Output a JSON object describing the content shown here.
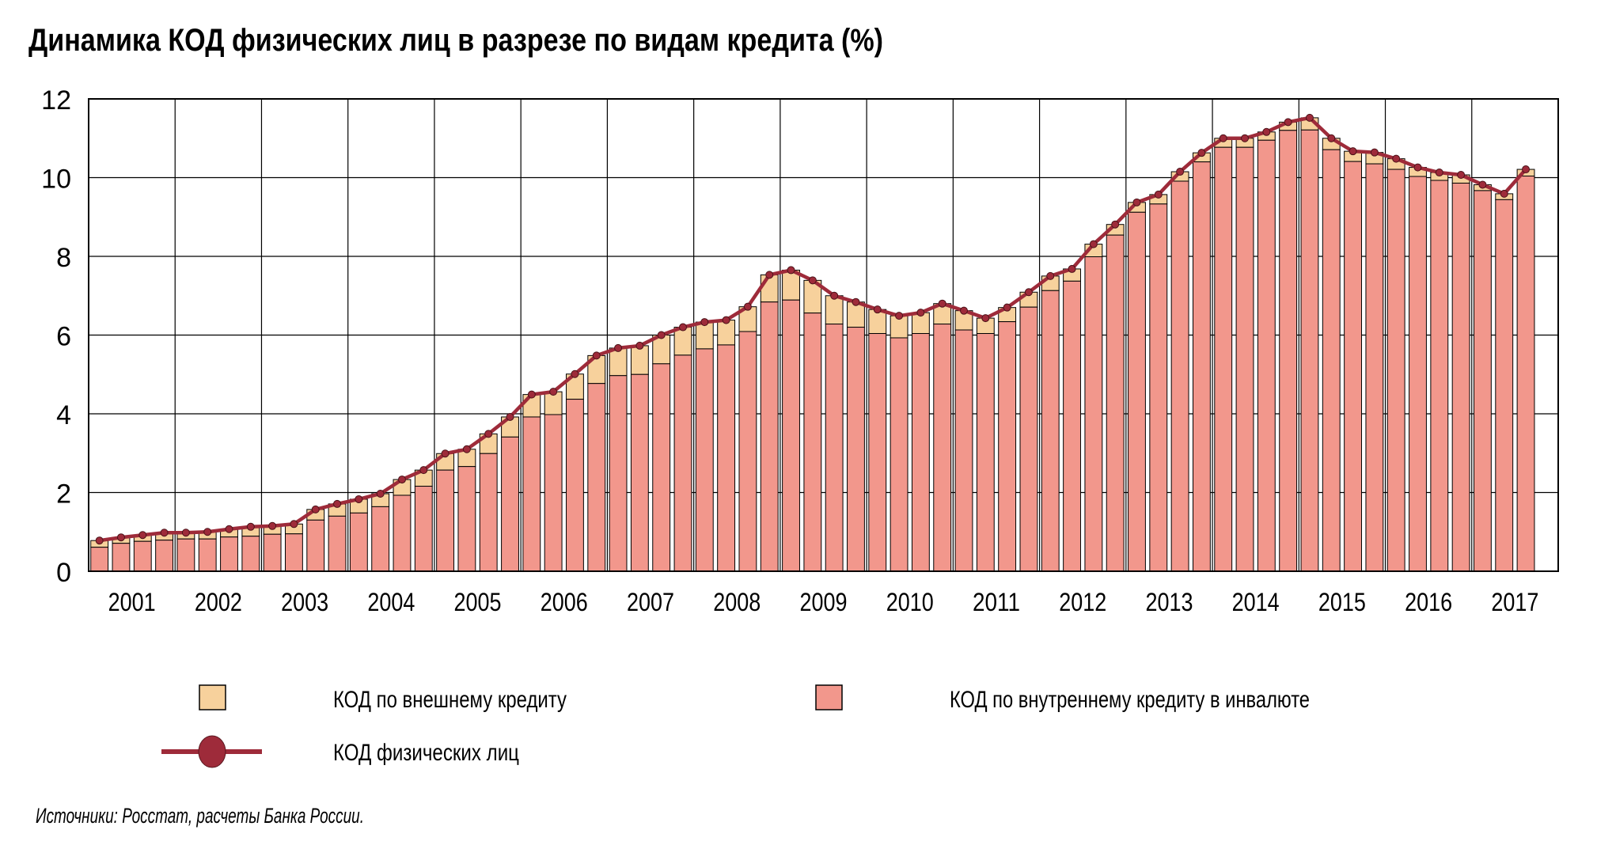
{
  "chart_data": {
    "type": "bar",
    "stacked": true,
    "title": "Динамика КОД физических лиц в разрезе по видам кредита (%)",
    "xlabel": "",
    "ylabel": "",
    "ylim": [
      0,
      12
    ],
    "yticks": [
      "0",
      "2",
      "4",
      "6",
      "8",
      "10",
      "12"
    ],
    "grid": true,
    "year_labels": [
      "2001",
      "2002",
      "2003",
      "2004",
      "2005",
      "2006",
      "2007",
      "2008",
      "2009",
      "2010",
      "2011",
      "2012",
      "2013",
      "2014",
      "2015",
      "2016",
      "2017"
    ],
    "points_per_year": 4,
    "series": [
      {
        "name": "КОД по внутреннему кредиту в инвалюте",
        "kind": "bar",
        "color": "#F2978C",
        "values": [
          0.61,
          0.71,
          0.76,
          0.79,
          0.82,
          0.82,
          0.87,
          0.89,
          0.94,
          0.95,
          1.3,
          1.4,
          1.48,
          1.64,
          1.93,
          2.16,
          2.57,
          2.66,
          2.99,
          3.41,
          3.92,
          3.98,
          4.37,
          4.77,
          4.97,
          5.0,
          5.27,
          5.49,
          5.65,
          5.75,
          6.09,
          6.84,
          6.89,
          6.56,
          6.28,
          6.2,
          6.04,
          5.93,
          6.04,
          6.28,
          6.13,
          6.04,
          6.34,
          6.71,
          7.13,
          7.37,
          7.99,
          8.54,
          9.12,
          9.33,
          9.91,
          10.4,
          10.77,
          10.77,
          10.95,
          11.2,
          11.21,
          10.71,
          10.41,
          10.35,
          10.21,
          10.03,
          9.93,
          9.86,
          9.67,
          9.44,
          10.04
        ]
      },
      {
        "name": "КОД по внешнему кредиту",
        "kind": "bar",
        "color": "#F7D19C",
        "values": [
          0.17,
          0.15,
          0.16,
          0.19,
          0.16,
          0.18,
          0.2,
          0.24,
          0.21,
          0.25,
          0.27,
          0.31,
          0.35,
          0.33,
          0.4,
          0.41,
          0.42,
          0.44,
          0.5,
          0.51,
          0.57,
          0.58,
          0.64,
          0.71,
          0.7,
          0.73,
          0.73,
          0.71,
          0.68,
          0.63,
          0.63,
          0.69,
          0.76,
          0.83,
          0.72,
          0.64,
          0.61,
          0.56,
          0.53,
          0.52,
          0.49,
          0.39,
          0.36,
          0.38,
          0.37,
          0.31,
          0.32,
          0.27,
          0.25,
          0.24,
          0.24,
          0.23,
          0.23,
          0.23,
          0.21,
          0.21,
          0.31,
          0.29,
          0.26,
          0.29,
          0.27,
          0.23,
          0.2,
          0.21,
          0.15,
          0.15,
          0.17
        ]
      },
      {
        "name": "КОД физических лиц",
        "kind": "line",
        "color": "#9E2B3A",
        "values": [
          0.78,
          0.86,
          0.92,
          0.98,
          0.98,
          1.0,
          1.07,
          1.13,
          1.15,
          1.2,
          1.57,
          1.71,
          1.83,
          1.97,
          2.33,
          2.57,
          2.99,
          3.1,
          3.49,
          3.92,
          4.49,
          4.56,
          5.01,
          5.48,
          5.67,
          5.73,
          6.0,
          6.2,
          6.33,
          6.38,
          6.72,
          7.53,
          7.65,
          7.39,
          7.0,
          6.84,
          6.65,
          6.49,
          6.57,
          6.8,
          6.62,
          6.43,
          6.7,
          7.09,
          7.5,
          7.68,
          8.31,
          8.81,
          9.37,
          9.57,
          10.15,
          10.63,
          11.0,
          11.0,
          11.16,
          11.41,
          11.52,
          11.0,
          10.67,
          10.64,
          10.48,
          10.26,
          10.13,
          10.07,
          9.82,
          9.59,
          10.21
        ]
      }
    ],
    "legend": [
      {
        "label": "КОД по внешнему кредиту",
        "color": "#F7D19C",
        "kind": "box"
      },
      {
        "label": "КОД по внутреннему кредиту в инвалюте",
        "color": "#F2978C",
        "kind": "box"
      },
      {
        "label": "КОД физических лиц",
        "color": "#9E2B3A",
        "kind": "line-marker"
      }
    ],
    "legend_placement": "bottom"
  },
  "source_note": "Источники: Росстат, расчеты Банка России."
}
